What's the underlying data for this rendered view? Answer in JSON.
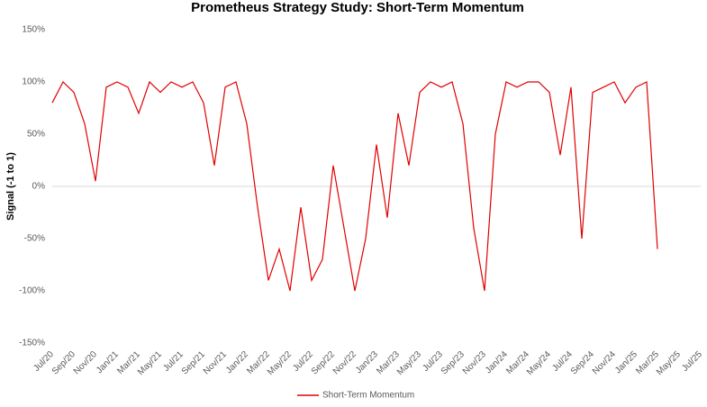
{
  "chart_data": {
    "type": "line",
    "title": "Prometheus Strategy Study: Short-Term Momentum",
    "y_label": "Signal (-1 to 1)",
    "categories": [
      "Jul/20",
      null,
      "Sep/20",
      null,
      "Nov/20",
      null,
      "Jan/21",
      null,
      "Mar/21",
      null,
      "May/21",
      null,
      "Jul/21",
      null,
      "Sep/21",
      null,
      "Nov/21",
      null,
      "Jan/22",
      null,
      "Mar/22",
      null,
      "May/22",
      null,
      "Jul/22",
      null,
      "Sep/22",
      null,
      "Nov/22",
      null,
      "Jan/23",
      null,
      "Mar/23",
      null,
      "May/23",
      null,
      "Jul/23",
      null,
      "Sep/23",
      null,
      "Nov/23",
      null,
      "Jan/24",
      null,
      "Mar/24",
      null,
      "May/24",
      null,
      "Jul/24",
      null,
      "Sep/24",
      null,
      "Nov/24",
      null,
      "Jan/25",
      null,
      "Mar/25",
      null,
      "May/25",
      null,
      "Jul/25"
    ],
    "series": [
      {
        "name": "Short-Term Momentum",
        "color": "#e00000",
        "values": [
          80,
          100,
          90,
          60,
          5,
          95,
          100,
          95,
          70,
          100,
          90,
          100,
          95,
          100,
          80,
          20,
          95,
          100,
          60,
          -20,
          -90,
          -60,
          -100,
          -20,
          -90,
          -70,
          20,
          -40,
          -100,
          -50,
          40,
          -30,
          70,
          20,
          90,
          100,
          95,
          100,
          60,
          -40,
          -100,
          50,
          100,
          95,
          100,
          100,
          90,
          30,
          95,
          -50,
          90,
          95,
          100,
          80,
          95,
          100,
          -60,
          null,
          null,
          null,
          null
        ]
      }
    ],
    "ylim": [
      -150,
      150
    ],
    "yticks": [
      {
        "value": -150,
        "label": "-150%"
      },
      {
        "value": -100,
        "label": "-100%"
      },
      {
        "value": -50,
        "label": "-50%"
      },
      {
        "value": 0,
        "label": "0%"
      },
      {
        "value": 50,
        "label": "50%"
      },
      {
        "value": 100,
        "label": "100%"
      },
      {
        "value": 150,
        "label": "150%"
      }
    ],
    "legend": "bottom"
  }
}
